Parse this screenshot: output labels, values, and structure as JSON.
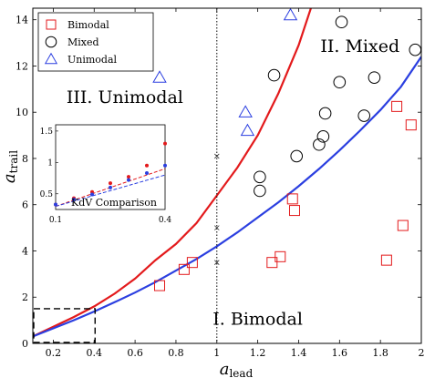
{
  "chart_data": {
    "type": "scatter",
    "xlabel": "a",
    "xlabel_sub": "lead",
    "ylabel": "a",
    "ylabel_sub": "trail",
    "xlim": [
      0.1,
      2.0
    ],
    "ylim": [
      0,
      14.5
    ],
    "x_ticks": [
      0.2,
      0.4,
      0.6,
      0.8,
      1,
      1.2,
      1.4,
      1.6,
      1.8,
      2
    ],
    "x_tick_labels": [
      "0.2",
      "0.4",
      "0.6",
      "0.8",
      "1",
      "1.2",
      "1.4",
      "1.6",
      "1.8",
      "2"
    ],
    "y_ticks": [
      0,
      2,
      4,
      6,
      8,
      10,
      12,
      14
    ],
    "y_tick_labels": [
      "0",
      "2",
      "4",
      "6",
      "8",
      "10",
      "12",
      "14"
    ],
    "grid": false,
    "legend_position": "top-left",
    "region_labels": [
      {
        "text": "II. Mixed",
        "x": 1.7,
        "y": 12.6
      },
      {
        "text": "III. Unimodal",
        "x": 0.55,
        "y": 10.4
      },
      {
        "text": "I. Bimodal",
        "x": 1.2,
        "y": 0.8
      }
    ],
    "vertical_line_x": 1.0,
    "crosses": [
      [
        1.0,
        8.1
      ],
      [
        1.0,
        5.0
      ],
      [
        1.0,
        3.5
      ]
    ],
    "curves": [
      {
        "color": "#e31a1c",
        "points": [
          [
            0.1,
            0.3
          ],
          [
            0.2,
            0.72
          ],
          [
            0.3,
            1.14
          ],
          [
            0.4,
            1.6
          ],
          [
            0.5,
            2.15
          ],
          [
            0.6,
            2.8
          ],
          [
            0.7,
            3.6
          ],
          [
            0.8,
            4.3
          ],
          [
            0.9,
            5.2
          ],
          [
            1.0,
            6.4
          ],
          [
            1.1,
            7.6
          ],
          [
            1.2,
            9.0
          ],
          [
            1.3,
            10.8
          ],
          [
            1.4,
            12.9
          ],
          [
            1.46,
            14.5
          ]
        ]
      },
      {
        "color": "#2b3fe0",
        "points": [
          [
            0.1,
            0.3
          ],
          [
            0.2,
            0.65
          ],
          [
            0.3,
            1.0
          ],
          [
            0.4,
            1.38
          ],
          [
            0.5,
            1.78
          ],
          [
            0.6,
            2.2
          ],
          [
            0.7,
            2.65
          ],
          [
            0.8,
            3.15
          ],
          [
            0.9,
            3.65
          ],
          [
            1.0,
            4.2
          ],
          [
            1.1,
            4.8
          ],
          [
            1.2,
            5.45
          ],
          [
            1.3,
            6.1
          ],
          [
            1.4,
            6.8
          ],
          [
            1.5,
            7.55
          ],
          [
            1.6,
            8.35
          ],
          [
            1.7,
            9.2
          ],
          [
            1.8,
            10.1
          ],
          [
            1.9,
            11.1
          ],
          [
            2.0,
            12.4
          ]
        ]
      }
    ],
    "series": [
      {
        "name": "Bimodal",
        "color": "#e31a1c",
        "marker": "square",
        "points": [
          [
            0.72,
            2.5
          ],
          [
            0.84,
            3.2
          ],
          [
            0.88,
            3.5
          ],
          [
            1.27,
            3.5
          ],
          [
            1.31,
            3.75
          ],
          [
            1.37,
            6.25
          ],
          [
            1.38,
            5.75
          ],
          [
            1.83,
            3.6
          ],
          [
            1.88,
            10.25
          ],
          [
            1.91,
            5.1
          ],
          [
            1.95,
            9.45
          ]
        ]
      },
      {
        "name": "Mixed",
        "color": "#000000",
        "marker": "circle",
        "points": [
          [
            1.28,
            11.6
          ],
          [
            1.21,
            7.2
          ],
          [
            1.21,
            6.6
          ],
          [
            1.39,
            8.1
          ],
          [
            1.5,
            8.6
          ],
          [
            1.52,
            8.95
          ],
          [
            1.53,
            9.95
          ],
          [
            1.6,
            11.3
          ],
          [
            1.61,
            13.9
          ],
          [
            1.72,
            9.85
          ],
          [
            1.77,
            11.5
          ],
          [
            1.97,
            12.7
          ]
        ]
      },
      {
        "name": "Unimodal",
        "color": "#2b3fe0",
        "marker": "triangle",
        "points": [
          [
            0.72,
            11.5
          ],
          [
            1.14,
            10.0
          ],
          [
            1.15,
            9.2
          ],
          [
            1.36,
            14.2
          ]
        ]
      }
    ],
    "dashed_box": {
      "x": [
        0.1,
        0.4
      ],
      "y": [
        0,
        1.5
      ]
    },
    "inset": {
      "title": "KdV Comparison",
      "xlim": [
        0.1,
        0.4
      ],
      "ylim": [
        0.25,
        1.6
      ],
      "x_tick_labels": [
        "0.1",
        "0.4"
      ],
      "y_ticks": [
        0.5,
        1,
        1.5
      ],
      "y_tick_labels": [
        "0.5",
        "1",
        "1.5"
      ],
      "series": [
        {
          "color": "#e31a1c",
          "points": [
            [
              0.1,
              0.33
            ],
            [
              0.15,
              0.43
            ],
            [
              0.2,
              0.53
            ],
            [
              0.25,
              0.67
            ],
            [
              0.3,
              0.77
            ],
            [
              0.35,
              0.95
            ],
            [
              0.4,
              1.3
            ]
          ]
        },
        {
          "color": "#2b3fe0",
          "points": [
            [
              0.1,
              0.33
            ],
            [
              0.15,
              0.41
            ],
            [
              0.2,
              0.49
            ],
            [
              0.25,
              0.6
            ],
            [
              0.3,
              0.72
            ],
            [
              0.35,
              0.83
            ],
            [
              0.4,
              0.95
            ]
          ]
        }
      ],
      "lines": [
        {
          "color": "#e31a1c",
          "from": [
            0.1,
            0.3
          ],
          "to": [
            0.4,
            0.9
          ]
        },
        {
          "color": "#2b3fe0",
          "from": [
            0.1,
            0.3
          ],
          "to": [
            0.4,
            0.8
          ]
        }
      ]
    }
  }
}
